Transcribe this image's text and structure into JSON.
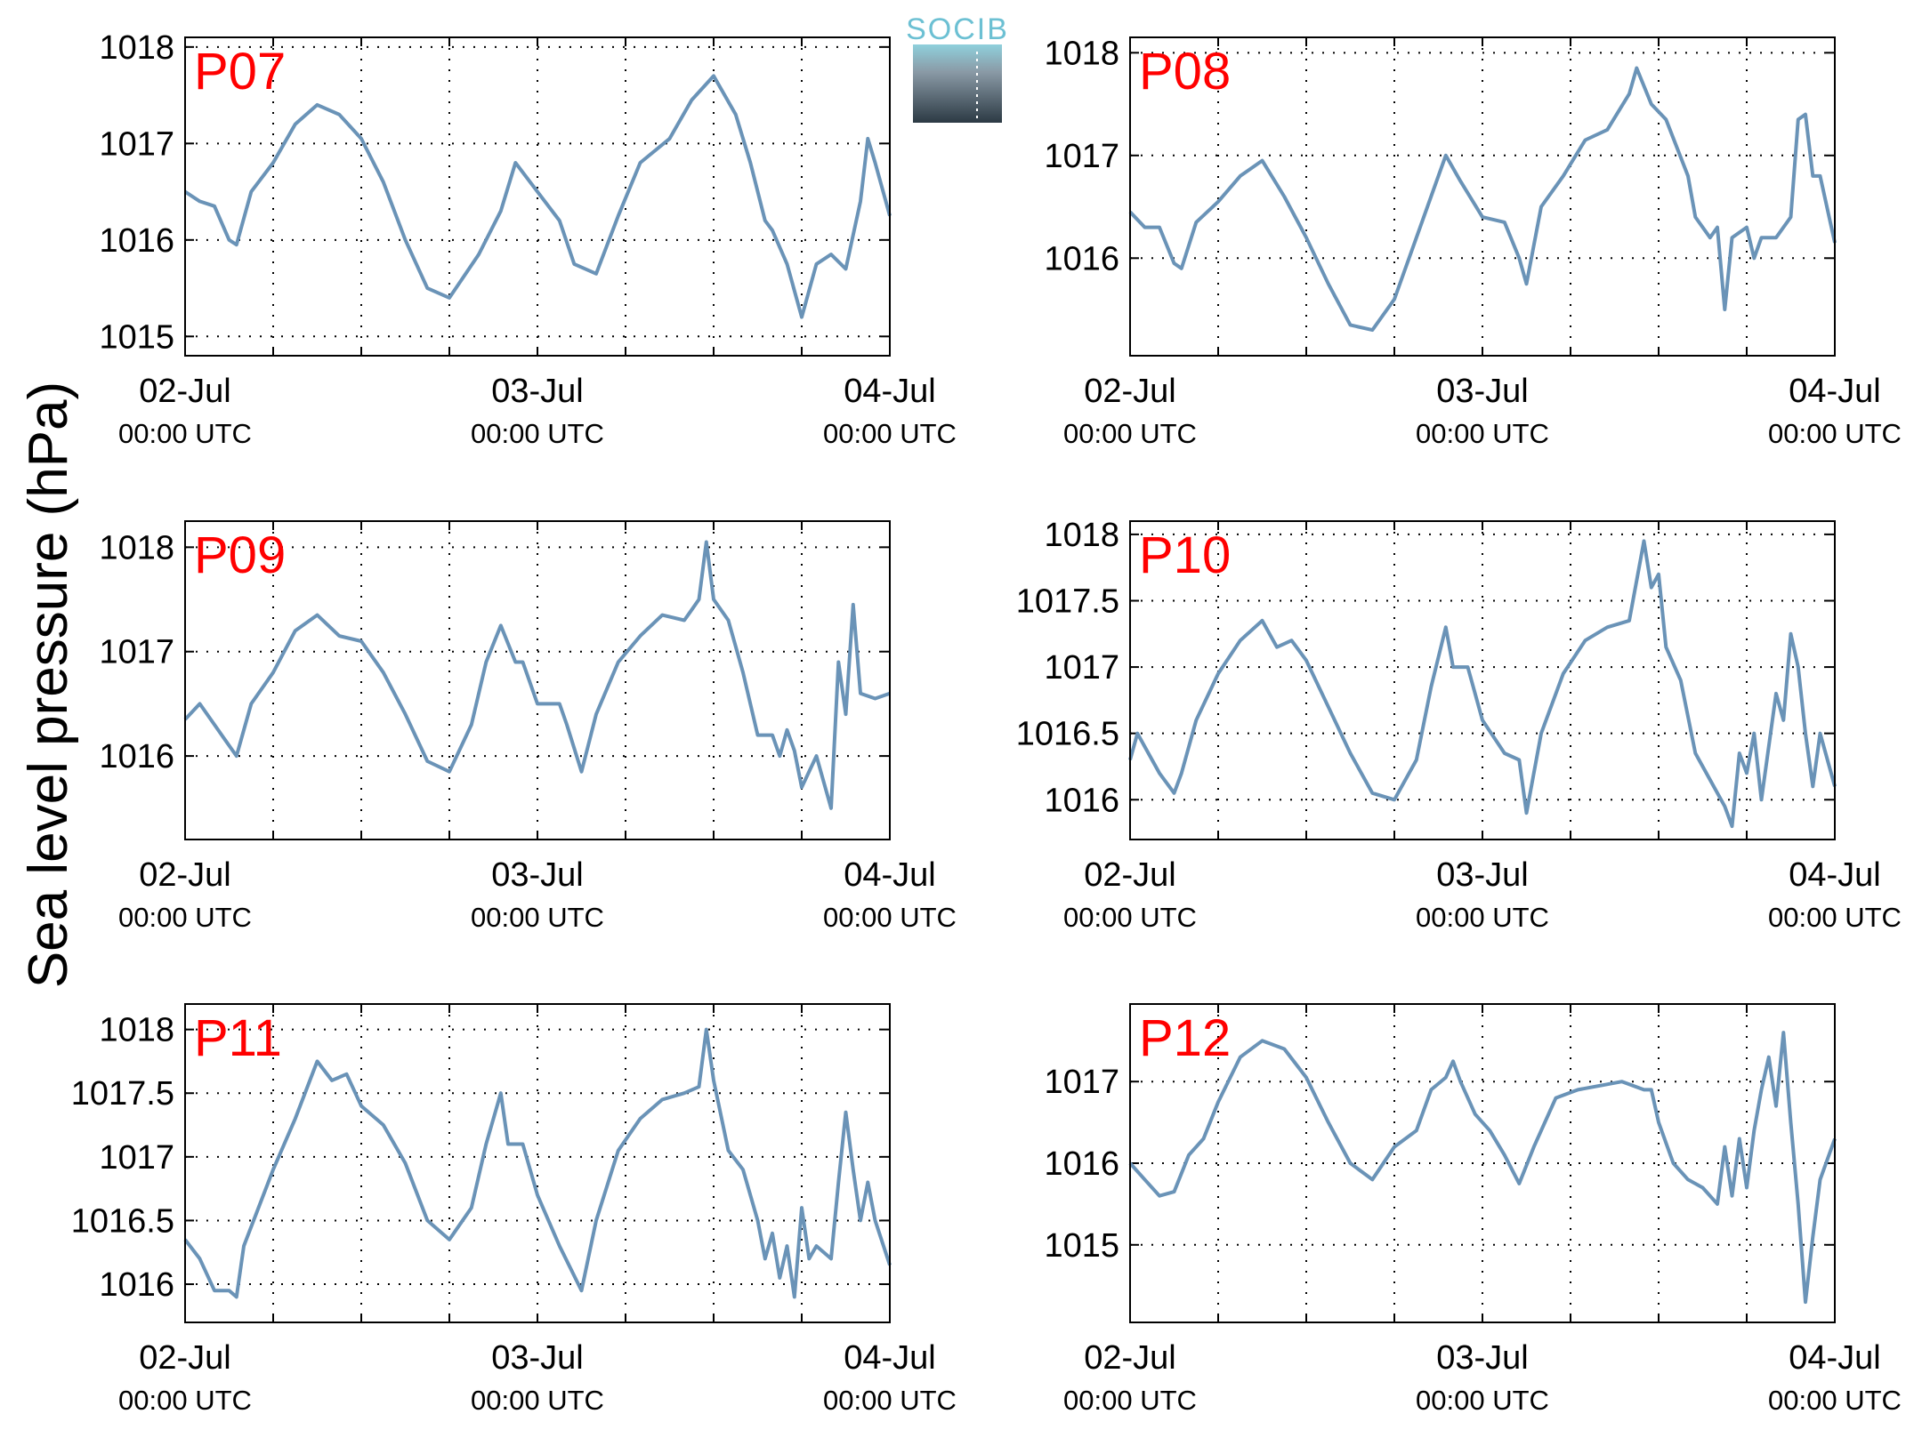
{
  "y_axis_label": "Sea level pressure (hPa)",
  "logo": {
    "text": "SOCIB"
  },
  "colors": {
    "series": "#6a93b7",
    "panel_label": "#ff0000",
    "axis": "#000000",
    "grid": "#000000",
    "logo_light": "#6cc0d3",
    "logo_dark": "#2c3a44"
  },
  "x_tick_labels": [
    {
      "date": "02-Jul",
      "time": "00:00 UTC"
    },
    {
      "date": "03-Jul",
      "time": "00:00 UTC"
    },
    {
      "date": "04-Jul",
      "time": "00:00 UTC"
    }
  ],
  "chart_data": [
    {
      "type": "line",
      "label": "P07",
      "x_range_hours": [
        0,
        48
      ],
      "ylim": [
        1014.8,
        1018.1
      ],
      "yticks": [
        1015,
        1016,
        1017,
        1018
      ],
      "grid": true,
      "series": [
        {
          "x_hours": [
            0,
            1,
            2,
            3,
            3.5,
            4.5,
            6,
            7.5,
            9,
            10.5,
            12,
            13.5,
            15,
            16.5,
            18,
            20,
            21.5,
            22.5,
            24,
            25.5,
            26.5,
            28,
            29.5,
            31,
            33,
            34.5,
            36,
            37.5,
            38.5,
            39.5,
            40,
            41,
            42,
            43,
            44,
            45,
            46,
            46.5,
            47,
            48
          ],
          "y": [
            1016.5,
            1016.4,
            1016.35,
            1016.0,
            1015.95,
            1016.5,
            1016.8,
            1017.2,
            1017.4,
            1017.3,
            1017.05,
            1016.6,
            1016.0,
            1015.5,
            1015.4,
            1015.85,
            1016.3,
            1016.8,
            1016.5,
            1016.2,
            1015.75,
            1015.65,
            1016.25,
            1016.8,
            1017.05,
            1017.45,
            1017.7,
            1017.3,
            1016.8,
            1016.2,
            1016.1,
            1015.75,
            1015.2,
            1015.75,
            1015.85,
            1015.7,
            1016.4,
            1017.05,
            1016.8,
            1016.25
          ]
        }
      ]
    },
    {
      "type": "line",
      "label": "P08",
      "x_range_hours": [
        0,
        48
      ],
      "ylim": [
        1015.05,
        1018.15
      ],
      "yticks": [
        1016,
        1017,
        1018
      ],
      "grid": true,
      "series": [
        {
          "x_hours": [
            0,
            1,
            2,
            3,
            3.5,
            4.5,
            6,
            7.5,
            9,
            10.5,
            12,
            13.5,
            15,
            16.5,
            18,
            19.5,
            21,
            21.5,
            22.5,
            24,
            25.5,
            26.5,
            27,
            28,
            29.5,
            31,
            32.5,
            34,
            34.5,
            35.5,
            36.5,
            38,
            38.5,
            39.5,
            40,
            40.5,
            41,
            42,
            42.5,
            43,
            44,
            45,
            45.5,
            46,
            46.5,
            47,
            48
          ],
          "y": [
            1016.45,
            1016.3,
            1016.3,
            1015.95,
            1015.9,
            1016.35,
            1016.55,
            1016.8,
            1016.95,
            1016.6,
            1016.2,
            1015.75,
            1015.35,
            1015.3,
            1015.6,
            1016.2,
            1016.8,
            1017.0,
            1016.75,
            1016.4,
            1016.35,
            1016.0,
            1015.75,
            1016.5,
            1016.8,
            1017.15,
            1017.25,
            1017.6,
            1017.85,
            1017.5,
            1017.35,
            1016.8,
            1016.4,
            1016.2,
            1016.3,
            1015.5,
            1016.2,
            1016.3,
            1016.0,
            1016.2,
            1016.2,
            1016.4,
            1017.35,
            1017.4,
            1016.8,
            1016.8,
            1016.15
          ]
        }
      ]
    },
    {
      "type": "line",
      "label": "P09",
      "x_range_hours": [
        0,
        48
      ],
      "ylim": [
        1015.2,
        1018.25
      ],
      "yticks": [
        1016,
        1017,
        1018
      ],
      "grid": true,
      "series": [
        {
          "x_hours": [
            0,
            1,
            2,
            3,
            3.5,
            4.5,
            6,
            7.5,
            9,
            10.5,
            12,
            13.5,
            15,
            16.5,
            18,
            19.5,
            20.5,
            21.5,
            22.5,
            23,
            24,
            25.5,
            26,
            27,
            28,
            29.5,
            31,
            32.5,
            34,
            34.5,
            35,
            35.5,
            36,
            37,
            38,
            39,
            39.5,
            40,
            40.5,
            41,
            41.5,
            42,
            43,
            44,
            44.5,
            45,
            45.5,
            46,
            47,
            48
          ],
          "y": [
            1016.35,
            1016.5,
            1016.3,
            1016.1,
            1016.0,
            1016.5,
            1016.8,
            1017.2,
            1017.35,
            1017.15,
            1017.1,
            1016.8,
            1016.4,
            1015.95,
            1015.85,
            1016.3,
            1016.9,
            1017.25,
            1016.9,
            1016.9,
            1016.5,
            1016.5,
            1016.3,
            1015.85,
            1016.4,
            1016.9,
            1017.15,
            1017.35,
            1017.3,
            1017.4,
            1017.5,
            1018.05,
            1017.5,
            1017.3,
            1016.8,
            1016.2,
            1016.2,
            1016.2,
            1016.0,
            1016.25,
            1016.05,
            1015.7,
            1016.0,
            1015.5,
            1016.9,
            1016.4,
            1017.45,
            1016.6,
            1016.55,
            1016.6
          ]
        }
      ]
    },
    {
      "type": "line",
      "label": "P10",
      "x_range_hours": [
        0,
        48
      ],
      "ylim": [
        1015.7,
        1018.1
      ],
      "yticks": [
        1016,
        1016.5,
        1017,
        1017.5,
        1018
      ],
      "grid": true,
      "series": [
        {
          "x_hours": [
            0,
            0.5,
            1,
            2,
            3,
            3.5,
            4.5,
            6,
            7.5,
            9,
            10,
            11,
            12,
            13.5,
            15,
            16.5,
            18,
            19.5,
            20.5,
            21.5,
            22,
            23,
            24,
            25.5,
            26.5,
            27,
            28,
            29.5,
            31,
            32.5,
            34,
            35,
            35.5,
            36,
            36.5,
            37.5,
            38.5,
            39.5,
            40.5,
            41,
            41.5,
            42,
            42.5,
            43,
            44,
            44.5,
            45,
            45.5,
            46,
            46.5,
            47,
            48
          ],
          "y": [
            1016.3,
            1016.5,
            1016.4,
            1016.2,
            1016.05,
            1016.2,
            1016.6,
            1016.95,
            1017.2,
            1017.35,
            1017.15,
            1017.2,
            1017.05,
            1016.7,
            1016.35,
            1016.05,
            1016.0,
            1016.3,
            1016.85,
            1017.3,
            1017.0,
            1017.0,
            1016.6,
            1016.35,
            1016.3,
            1015.9,
            1016.5,
            1016.95,
            1017.2,
            1017.3,
            1017.35,
            1017.95,
            1017.6,
            1017.7,
            1017.15,
            1016.9,
            1016.35,
            1016.15,
            1015.95,
            1015.8,
            1016.35,
            1016.2,
            1016.5,
            1016.0,
            1016.8,
            1016.6,
            1017.25,
            1017.0,
            1016.5,
            1016.1,
            1016.5,
            1016.1
          ]
        }
      ]
    },
    {
      "type": "line",
      "label": "P11",
      "x_range_hours": [
        0,
        48
      ],
      "ylim": [
        1015.7,
        1018.2
      ],
      "yticks": [
        1016,
        1016.5,
        1017,
        1017.5,
        1018
      ],
      "grid": true,
      "series": [
        {
          "x_hours": [
            0,
            1,
            2,
            3,
            3.5,
            4,
            5,
            6,
            7.5,
            9,
            10,
            11,
            12,
            13.5,
            15,
            16.5,
            18,
            19.5,
            20.5,
            21.5,
            22,
            23,
            24,
            25.5,
            27,
            28,
            29.5,
            31,
            32.5,
            34,
            35,
            35.5,
            36,
            37,
            38,
            39,
            39.5,
            40,
            40.5,
            41,
            41.5,
            42,
            42.5,
            43,
            44,
            44.5,
            45,
            45.5,
            46,
            46.5,
            47,
            48
          ],
          "y": [
            1016.35,
            1016.2,
            1015.95,
            1015.95,
            1015.9,
            1016.3,
            1016.6,
            1016.9,
            1017.3,
            1017.75,
            1017.6,
            1017.65,
            1017.4,
            1017.25,
            1016.95,
            1016.5,
            1016.35,
            1016.6,
            1017.1,
            1017.5,
            1017.1,
            1017.1,
            1016.7,
            1016.3,
            1015.95,
            1016.5,
            1017.05,
            1017.3,
            1017.45,
            1017.5,
            1017.55,
            1018.0,
            1017.6,
            1017.05,
            1016.9,
            1016.5,
            1016.2,
            1016.4,
            1016.05,
            1016.3,
            1015.9,
            1016.6,
            1016.2,
            1016.3,
            1016.2,
            1016.8,
            1017.35,
            1016.9,
            1016.5,
            1016.8,
            1016.5,
            1016.15
          ]
        }
      ]
    },
    {
      "type": "line",
      "label": "P12",
      "x_range_hours": [
        0,
        48
      ],
      "ylim": [
        1014.05,
        1017.95
      ],
      "yticks": [
        1015,
        1016,
        1017
      ],
      "grid": true,
      "series": [
        {
          "x_hours": [
            0,
            1,
            2,
            3,
            4,
            5,
            6,
            7.5,
            9,
            10.5,
            12,
            13.5,
            15,
            16.5,
            18,
            19.5,
            20.5,
            21.5,
            22,
            22.5,
            23.5,
            24.5,
            25.5,
            26.5,
            27.5,
            29,
            30.5,
            32,
            33.5,
            35,
            35.5,
            36,
            37,
            38,
            39,
            40,
            40.5,
            41,
            41.5,
            42,
            42.5,
            43,
            43.5,
            44,
            44.5,
            45,
            45.5,
            46,
            46.5,
            47,
            48
          ],
          "y": [
            1016.0,
            1015.8,
            1015.6,
            1015.65,
            1016.1,
            1016.3,
            1016.75,
            1017.3,
            1017.5,
            1017.4,
            1017.05,
            1016.5,
            1016.0,
            1015.8,
            1016.2,
            1016.4,
            1016.9,
            1017.05,
            1017.25,
            1017.0,
            1016.6,
            1016.4,
            1016.1,
            1015.75,
            1016.2,
            1016.8,
            1016.9,
            1016.95,
            1017.0,
            1016.9,
            1016.9,
            1016.5,
            1016.0,
            1015.8,
            1015.7,
            1015.5,
            1016.2,
            1015.6,
            1016.3,
            1015.7,
            1016.4,
            1016.9,
            1017.3,
            1016.7,
            1017.6,
            1016.5,
            1015.5,
            1014.3,
            1015.1,
            1015.8,
            1016.3
          ]
        }
      ]
    }
  ]
}
